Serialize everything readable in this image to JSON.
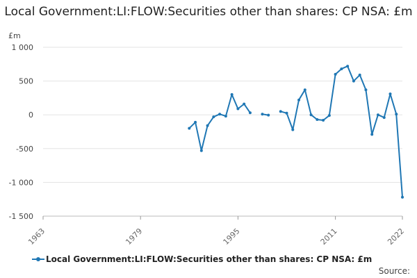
{
  "chart_data": {
    "type": "line",
    "title": "Local Government:LI:FLOW:Securities other than shares: CP NSA: £m",
    "unit_label": "£m",
    "xlabel": "",
    "ylabel": "£m",
    "xlim": [
      1963,
      2022
    ],
    "ylim": [
      -1500,
      1000
    ],
    "x_ticks": [
      1963,
      1979,
      1995,
      2011,
      2022
    ],
    "y_ticks": [
      1000,
      500,
      0,
      -500,
      -1000,
      -1500
    ],
    "y_tick_labels": [
      "1 000",
      "500",
      "0",
      "-500",
      "-1 000",
      "-1 500"
    ],
    "grid": true,
    "legend_position": "bottom",
    "series": [
      {
        "name": "Local Government:LI:FLOW:Securities other than shares: CP NSA: £m",
        "color": "#1f77b4",
        "points": [
          [
            1987,
            -200
          ],
          [
            1988,
            -110
          ],
          [
            1989,
            -530
          ],
          [
            1990,
            -160
          ],
          [
            1991,
            -30
          ],
          [
            1992,
            10
          ],
          [
            1993,
            -20
          ],
          [
            1994,
            300
          ],
          [
            1995,
            90
          ],
          [
            1996,
            160
          ],
          [
            1997,
            30
          ],
          null,
          [
            1999,
            10
          ],
          [
            2000,
            -5
          ],
          null,
          [
            2002,
            50
          ],
          [
            2003,
            25
          ],
          [
            2004,
            -220
          ],
          [
            2005,
            220
          ],
          [
            2006,
            370
          ],
          [
            2007,
            0
          ],
          [
            2008,
            -70
          ],
          [
            2009,
            -80
          ],
          [
            2010,
            -10
          ],
          [
            2011,
            600
          ],
          [
            2012,
            680
          ],
          [
            2013,
            720
          ],
          [
            2014,
            500
          ],
          [
            2015,
            590
          ],
          [
            2016,
            370
          ],
          [
            2017,
            -290
          ],
          [
            2018,
            0
          ],
          [
            2019,
            -40
          ],
          [
            2020,
            310
          ],
          [
            2021,
            10
          ],
          [
            2022,
            -1220
          ]
        ]
      }
    ]
  },
  "legend": {
    "label": "Local Government:LI:FLOW:Securities other than shares: CP NSA: £m"
  },
  "source": "Source:"
}
